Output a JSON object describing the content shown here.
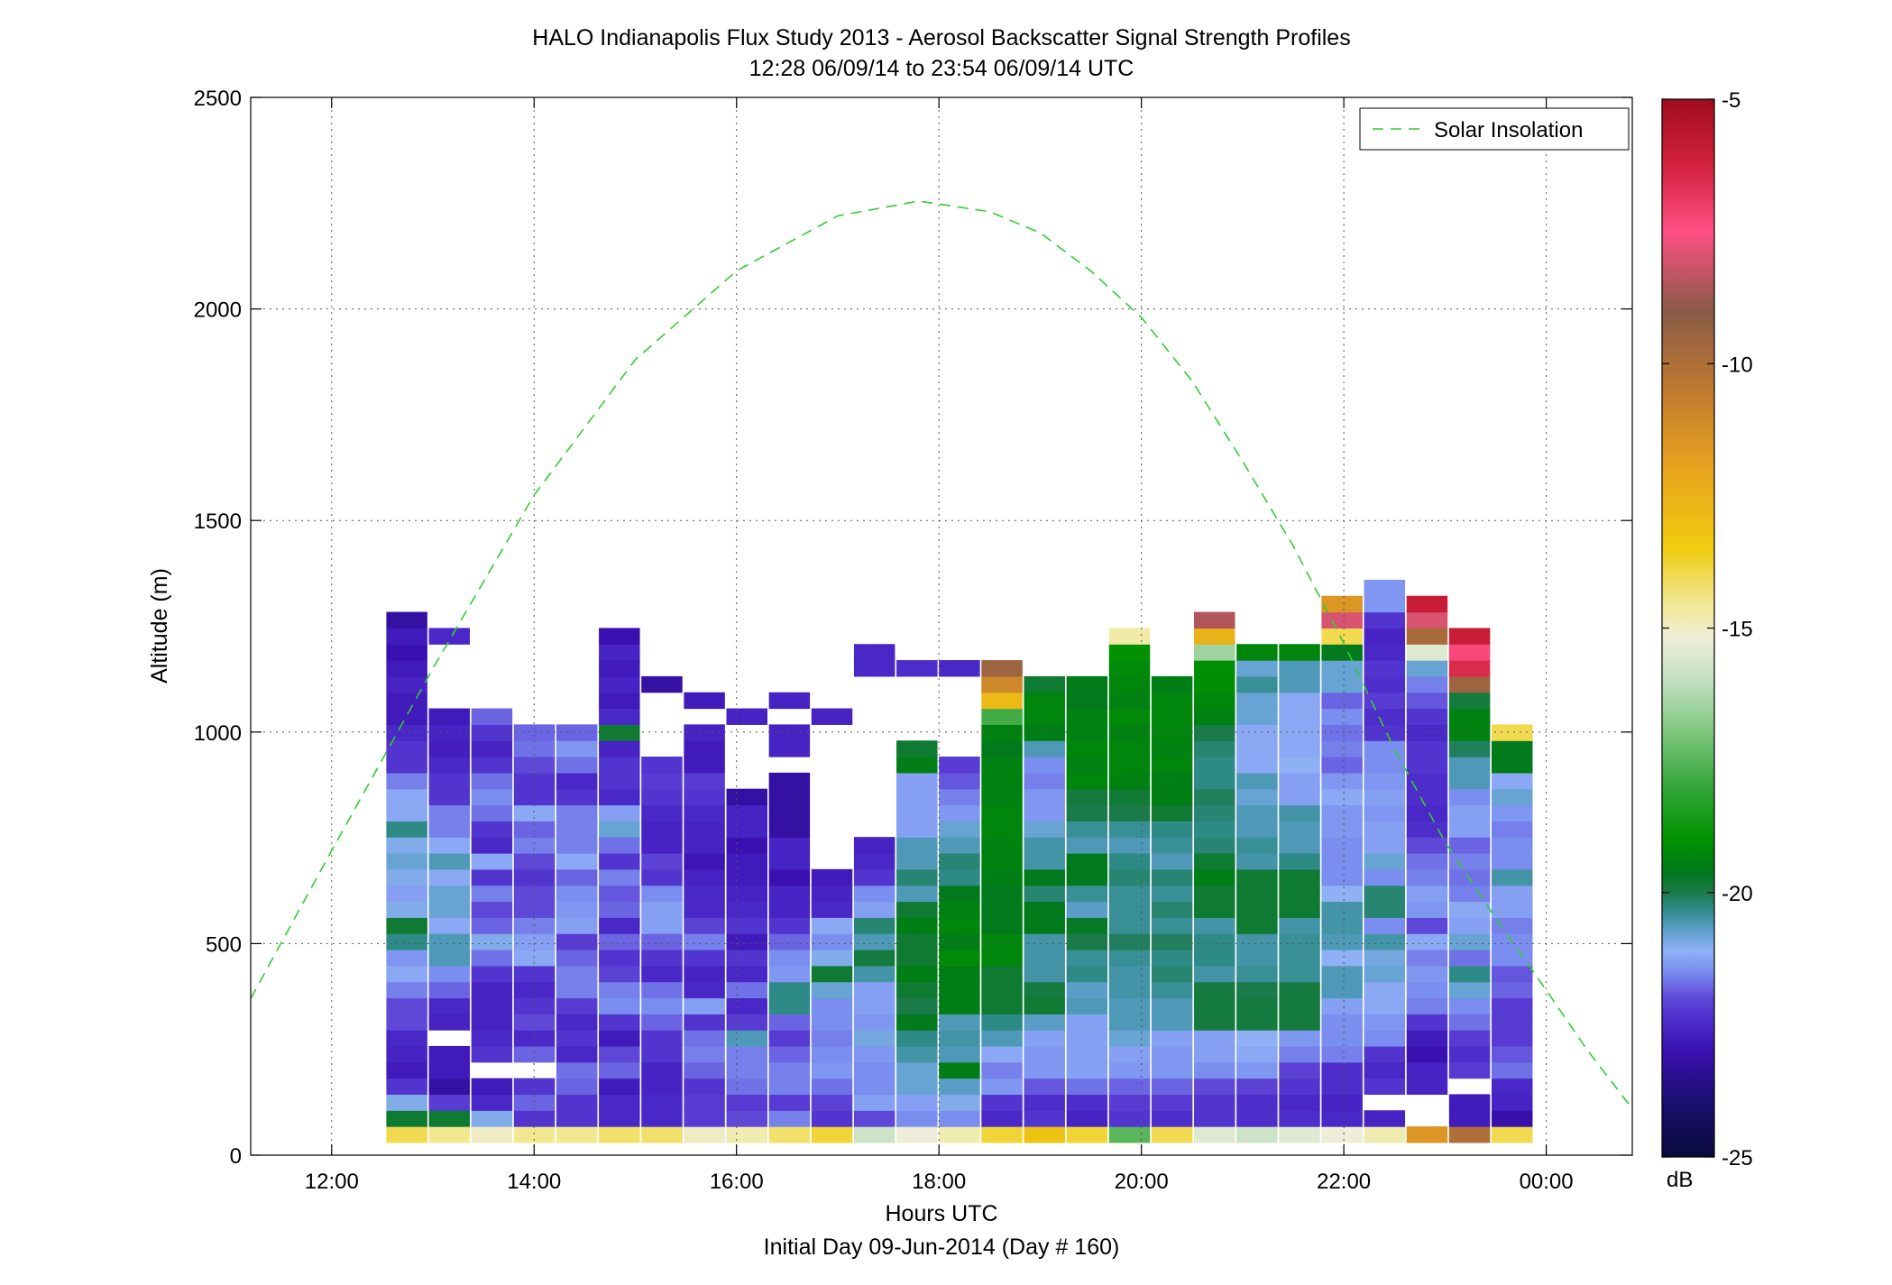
{
  "chart_data": {
    "type": "heatmap",
    "title": "HALO Indianapolis Flux Study 2013 - Aerosol Backscatter Signal Strength Profiles",
    "subtitle": "12:28 06/09/14 to 23:54 06/09/14  UTC",
    "xlabel": "Hours UTC",
    "xlabel2": "Initial Day 09-Jun-2014 (Day # 160)",
    "ylabel": "Altitude (m)",
    "xlim": [
      11.2,
      24.85
    ],
    "ylim": [
      0,
      2500
    ],
    "grid": true,
    "x_ticks": [
      12,
      14,
      16,
      18,
      20,
      22,
      24
    ],
    "x_tick_labels": [
      "12:00",
      "14:00",
      "16:00",
      "18:00",
      "20:00",
      "22:00",
      "00:00"
    ],
    "y_ticks": [
      0,
      500,
      1000,
      1500,
      2000,
      2500
    ],
    "y_tick_labels": [
      "0",
      "500",
      "1000",
      "1500",
      "2000",
      "2500"
    ],
    "colorbar": {
      "label": "dB",
      "range": [
        -25,
        -5
      ],
      "ticks": [
        -5,
        -10,
        -15,
        -20,
        -25
      ],
      "tick_labels": [
        "-5",
        "-10",
        "-15",
        "-20",
        "-25"
      ]
    },
    "legend": {
      "position": "top-right",
      "entries": [
        "Solar Insolation"
      ]
    },
    "solar_insolation": {
      "style": "dashed",
      "color": "#33cc33",
      "points": [
        [
          11.2,
          370
        ],
        [
          12,
          720
        ],
        [
          13,
          1150
        ],
        [
          14,
          1560
        ],
        [
          15,
          1880
        ],
        [
          16,
          2090
        ],
        [
          17,
          2220
        ],
        [
          17.8,
          2255
        ],
        [
          18.5,
          2230
        ],
        [
          19,
          2180
        ],
        [
          19.5,
          2090
        ],
        [
          20,
          1980
        ],
        [
          20.5,
          1830
        ],
        [
          21,
          1640
        ],
        [
          21.5,
          1440
        ],
        [
          22,
          1210
        ],
        [
          22.5,
          960
        ],
        [
          23,
          740
        ],
        [
          23.5,
          560
        ],
        [
          24,
          390
        ],
        [
          24.4,
          250
        ],
        [
          24.85,
          110
        ]
      ]
    },
    "profile_width_hours": 0.4,
    "range_gate_m": 38,
    "value_order": "bottom-to-top",
    "profiles": [
      {
        "t": 12.74,
        "base": 30,
        "values": [
          -14,
          -19.8,
          -21,
          -22.3,
          -22.8,
          -22.6,
          -22.5,
          -22,
          -22,
          -21.6,
          -21.2,
          -21.4,
          -20.3,
          -19.8,
          -21,
          -21.3,
          -21,
          -20.8,
          -21,
          -20.3,
          -21.2,
          -21.2,
          -21.6,
          -22.3,
          -22.3,
          -22.5,
          -22.8,
          -22.8,
          -22.6,
          -22.8,
          -23,
          -22.8,
          -23.2
        ]
      },
      {
        "t": 13.16,
        "base": 30,
        "values": [
          -14.5,
          -19.8,
          -22.2,
          -23.2,
          -22.8,
          -22.8,
          null,
          -22.6,
          -22.5,
          -21.8,
          -21.5,
          -20.6,
          -20.6,
          -21.2,
          -20.8,
          -20.8,
          -21.2,
          -20.6,
          -21.2,
          -21.6,
          -21.6,
          -22.3,
          -22.3,
          -22.5,
          -22.7,
          -22.6,
          -22.8,
          null,
          null,
          null,
          null,
          -22.5
        ]
      },
      {
        "t": 13.58,
        "base": 30,
        "values": [
          -15,
          -21,
          -22.5,
          -22.8,
          null,
          -22.3,
          -22.5,
          -22.6,
          -22.6,
          -22.6,
          -22.3,
          -21.7,
          -21,
          -21.8,
          -22,
          -21.6,
          -22.3,
          -21.2,
          -22.5,
          -22.3,
          -21.7,
          -21.5,
          -21.7,
          -22.3,
          -22.6,
          -22.3,
          -21.8
        ]
      },
      {
        "t": 14.0,
        "base": 30,
        "values": [
          -14.5,
          -22.3,
          -21.8,
          -22.3,
          null,
          -21.8,
          -22.5,
          -22,
          -22.3,
          -22.5,
          -22.3,
          -21.2,
          -21.3,
          -21.6,
          -22,
          -22,
          -22.3,
          -22,
          -21.6,
          -21.8,
          -21.2,
          -22.3,
          -22.3,
          -22,
          -21.7,
          -21.8
        ]
      },
      {
        "t": 14.42,
        "base": 30,
        "values": [
          -14.5,
          -22.3,
          -22.3,
          -21.8,
          -21.7,
          -22.5,
          -22.3,
          -22.5,
          -22.2,
          -21.6,
          -21.6,
          -21.8,
          -22.2,
          -21.3,
          -21.4,
          -21.5,
          -21.8,
          -21.2,
          -21.6,
          -21.6,
          -21.6,
          -22.3,
          -22.5,
          -21.7,
          -21.4,
          -21.8
        ]
      },
      {
        "t": 14.84,
        "base": 30,
        "values": [
          -14.2,
          -22.5,
          -22.5,
          -22.8,
          -21.8,
          -22,
          -22.8,
          -22.3,
          -21.5,
          -21.6,
          -22.1,
          -22.3,
          -21.8,
          -22.5,
          -21.8,
          -21.9,
          -21.6,
          -22.3,
          -21.7,
          -20.8,
          -21.3,
          -22.5,
          -22.3,
          -22.3,
          -22.6,
          -19.8,
          -22.5,
          -22.8,
          -22.6,
          -22.8,
          -22.6,
          -23
        ]
      },
      {
        "t": 15.26,
        "base": 30,
        "values": [
          -14.2,
          -22.5,
          -22.5,
          -22.6,
          -22.6,
          -22.3,
          -22.3,
          -21.8,
          -21.5,
          -21.7,
          -22.5,
          -22.3,
          -21.8,
          -21.3,
          -21.3,
          -21.5,
          -22.3,
          -22.1,
          -22.6,
          -22.6,
          -22.5,
          -22.3,
          -22.2,
          -22.3,
          null,
          null,
          null,
          null,
          -23.2
        ]
      },
      {
        "t": 15.68,
        "base": 30,
        "values": [
          -15,
          -22.2,
          -22.2,
          -22.3,
          -21.8,
          -21.6,
          -21.7,
          -22.3,
          -21.3,
          -22.5,
          -22.6,
          -22.3,
          -21.6,
          -22.1,
          -22.5,
          -22.5,
          -22.6,
          -22.9,
          -22.6,
          -22.6,
          -22.5,
          -22.3,
          -22.2,
          -22.8,
          -22.8,
          -22.6,
          null,
          -22.8
        ]
      },
      {
        "t": 16.1,
        "base": 30,
        "values": [
          -14.8,
          -22,
          -22.2,
          -21.7,
          -21.6,
          -21.6,
          -20.6,
          -22.2,
          -22.5,
          -21.7,
          -22.5,
          -22.3,
          -22.8,
          -22.3,
          -22.5,
          -22.6,
          -22.8,
          -22.8,
          -23,
          -22.6,
          -22.6,
          -23.2,
          null,
          null,
          null,
          null,
          -22.6
        ]
      },
      {
        "t": 16.52,
        "base": 30,
        "values": [
          -14.2,
          -21.6,
          -22.2,
          -21.6,
          -21.6,
          -21.8,
          -22.2,
          -21.8,
          -20.3,
          -20.3,
          -21.4,
          -21.5,
          -21.8,
          -22.3,
          -22.6,
          -22.6,
          -23,
          -22.6,
          -22.6,
          -23.2,
          -23.2,
          -23.2,
          -23.2,
          null,
          -22.6,
          -22.6,
          null,
          -22.6
        ]
      },
      {
        "t": 16.94,
        "base": 30,
        "values": [
          -13.8,
          -22.3,
          -22.1,
          -21.7,
          -21.4,
          -21.5,
          -21.6,
          -21.5,
          -21.5,
          -20.8,
          -19.8,
          -21,
          -21.5,
          -21.2,
          -22.5,
          -22.6,
          -22.8,
          null,
          null,
          null,
          null,
          null,
          null,
          null,
          null,
          null,
          -22.6
        ]
      },
      {
        "t": 17.36,
        "base": 30,
        "values": [
          -15.8,
          -22,
          -21.3,
          -21.5,
          -21.5,
          -21.4,
          -20.9,
          -21.4,
          -21.3,
          -21.3,
          -20.5,
          -19.9,
          -20.6,
          -20.2,
          -21.3,
          -21.5,
          -22.3,
          -22.5,
          -22.6,
          null,
          null,
          null,
          null,
          null,
          null,
          null,
          null,
          null,
          null,
          -22.5,
          -22.5
        ]
      },
      {
        "t": 17.78,
        "base": 30,
        "values": [
          -15.2,
          -21.5,
          -21.3,
          -20.8,
          -20.8,
          -20.5,
          -20.3,
          -19.6,
          -20,
          -19.8,
          -19.5,
          -19.8,
          -19.8,
          -19.5,
          -19.8,
          -20.6,
          -20.2,
          -20.6,
          -20.6,
          -21.3,
          -21.3,
          -21.3,
          -21.3,
          -19.5,
          -19.8,
          null,
          null,
          null,
          null,
          -22.4
        ]
      },
      {
        "t": 18.2,
        "base": 30,
        "values": [
          -14.8,
          -21.5,
          -21,
          -20.7,
          -19.5,
          -20.6,
          -20.5,
          -20.6,
          -19.5,
          -19.5,
          -19.5,
          -19.2,
          -19.5,
          -19.3,
          -19.4,
          -19.6,
          -20.3,
          -20.2,
          -20.6,
          -20.8,
          -21.4,
          -21.6,
          -21.9,
          -22.2,
          null,
          null,
          null,
          null,
          null,
          -22.5
        ]
      },
      {
        "t": 18.62,
        "base": 30,
        "values": [
          -13.8,
          -22.5,
          -22.3,
          -21.4,
          -21.6,
          -21.2,
          -20.6,
          -20.3,
          -19.8,
          -19.8,
          -19.8,
          -19.3,
          -19.3,
          -19.6,
          -19.6,
          -19.6,
          -19.5,
          -19.4,
          -19.4,
          -19.3,
          -19.3,
          -19.4,
          -19.4,
          -19.4,
          -19.6,
          -19.4,
          -17.8,
          -12.8,
          -11,
          -9.5
        ]
      },
      {
        "t": 19.04,
        "base": 30,
        "values": [
          -13.2,
          -22.3,
          -22.4,
          -21.9,
          -21.4,
          -21.4,
          -21.3,
          -20.7,
          -19.8,
          -19.9,
          -20.5,
          -20.5,
          -20.5,
          -19.6,
          -19.6,
          -20.2,
          -19.6,
          -20.5,
          -20.5,
          -20.8,
          -21.4,
          -21.4,
          -21.6,
          -21.5,
          -20.6,
          -19.5,
          -19.3,
          -19.3,
          -19.8
        ]
      },
      {
        "t": 19.46,
        "base": 30,
        "values": [
          -13.8,
          -22.6,
          -22.4,
          -21.7,
          -21.3,
          -21.3,
          -21.3,
          -21.3,
          -20.6,
          -20.7,
          -20.3,
          -20.4,
          -20,
          -19.7,
          -20.7,
          -20.4,
          -19.6,
          -19.6,
          -20.6,
          -20.4,
          -20,
          -19.9,
          -19.3,
          -19.4,
          -19.3,
          -19.4,
          -19.4,
          -19.6,
          -19.6
        ]
      },
      {
        "t": 19.88,
        "base": 30,
        "values": [
          -17.5,
          -22.3,
          -22.2,
          -21.8,
          -21.4,
          -21.3,
          -20.8,
          -20.6,
          -20.6,
          -20.5,
          -20.5,
          -20.4,
          -20.1,
          -20.4,
          -20.4,
          -20.4,
          -20.2,
          -20.3,
          -20.6,
          -20.4,
          -20,
          -19.8,
          -19.4,
          -19.3,
          -19.3,
          -19.4,
          -19.2,
          -19.4,
          -19.3,
          -19.2,
          -19,
          -14.7
        ]
      },
      {
        "t": 20.3,
        "base": 30,
        "values": [
          -14,
          -22.4,
          -22.2,
          -21.8,
          -21.4,
          -21.4,
          -21.3,
          -20.6,
          -20.6,
          -20.4,
          -20.2,
          -20.3,
          -20.1,
          -20.4,
          -20.2,
          -20.4,
          -20.2,
          -20.6,
          -20.4,
          -20.3,
          -19.8,
          -19.5,
          -19.5,
          -19.3,
          -19.4,
          -19.3,
          -19.3,
          -19.3,
          -19.5
        ]
      },
      {
        "t": 20.72,
        "base": 30,
        "values": [
          -15.5,
          -22.3,
          -22.3,
          -22,
          -21.5,
          -21.3,
          -21.3,
          -19.9,
          -19.9,
          -19.9,
          -20.5,
          -20.3,
          -20.3,
          -20.5,
          -19.8,
          -19.8,
          -19.5,
          -19.8,
          -20.2,
          -20.3,
          -20.2,
          -20.1,
          -20.3,
          -20.3,
          -20.2,
          -20,
          -19.4,
          -19.3,
          -19.1,
          -19.1,
          -16.5,
          -12.5,
          -8.5
        ]
      },
      {
        "t": 21.14,
        "base": 30,
        "values": [
          -15.8,
          -22.4,
          -22.4,
          -22.1,
          -21.4,
          -21.2,
          -21.1,
          -19.9,
          -19.9,
          -20,
          -20.4,
          -20.5,
          -20.5,
          -19.8,
          -19.8,
          -19.8,
          -19.8,
          -20.5,
          -20.4,
          -20.6,
          -20.6,
          -20.8,
          -20.6,
          -21.2,
          -21.2,
          -21.2,
          -20.8,
          -20.8,
          -20.4,
          -20.8,
          -19.3
        ]
      },
      {
        "t": 21.56,
        "base": 30,
        "values": [
          -15.5,
          -22.4,
          -22.5,
          -22.3,
          -22.1,
          -21.6,
          -21.4,
          -19.9,
          -19.9,
          -19.9,
          -20.4,
          -20.4,
          -20.4,
          -20.5,
          -19.8,
          -19.8,
          -19.8,
          -20.3,
          -20.6,
          -20.6,
          -20.5,
          -21.3,
          -21.3,
          -21.1,
          -21.2,
          -21.2,
          -21.2,
          -21.2,
          -20.6,
          -20.6,
          -19.3
        ]
      },
      {
        "t": 21.98,
        "base": 30,
        "values": [
          -15.2,
          -22.5,
          -22.6,
          -22.4,
          -22.4,
          -21.6,
          -21.5,
          -21.5,
          -21.3,
          -20.6,
          -20.6,
          -21.1,
          -20.6,
          -20.5,
          -20.5,
          -21.1,
          -21.5,
          -21.5,
          -21.5,
          -21.4,
          -21.4,
          -21.2,
          -21.4,
          -21.8,
          -21.6,
          -21.7,
          -21.5,
          -21.8,
          -20.8,
          -20.8,
          -19.6,
          -14,
          -8,
          -11.5
        ]
      },
      {
        "t": 22.4,
        "base": 30,
        "values": [
          -14.8,
          -22.6,
          null,
          -22.3,
          -22.5,
          -22.3,
          -21.5,
          -21.4,
          -21.2,
          -21.2,
          -20.8,
          -20.9,
          -20.5,
          -21.5,
          -20.2,
          -20.2,
          -21.5,
          -20.8,
          -21.3,
          -21.3,
          -21.4,
          -21.3,
          -21.4,
          -21.5,
          -21.5,
          -22.3,
          -22.4,
          -22.2,
          -22.4,
          -22.3,
          -22.5,
          -22.6,
          -22.3,
          -21.4,
          -21.4
        ]
      },
      {
        "t": 22.82,
        "base": 30,
        "values": [
          -11.5,
          null,
          null,
          -22.6,
          -22.6,
          -23,
          -22.8,
          -22.3,
          -21.6,
          -21.5,
          -21.4,
          -21.6,
          -21.2,
          -22,
          -21.4,
          -21.3,
          -21.6,
          -21.7,
          -22,
          -22.4,
          -22.5,
          -22.4,
          -22.4,
          -22.3,
          -22.3,
          -22.5,
          -22.3,
          -21.9,
          -21.6,
          -20.8,
          -15.5,
          -9.8,
          -8,
          -6
        ]
      },
      {
        "t": 23.24,
        "base": 30,
        "values": [
          -10,
          -22.8,
          -22.8,
          null,
          -22.2,
          -22.4,
          -22.2,
          -21.7,
          -21.5,
          -20.8,
          -20.3,
          -21.7,
          -20.8,
          -21.3,
          -21.2,
          -21.6,
          -21.7,
          -21.6,
          -21.8,
          -21.3,
          -21.3,
          -21.5,
          -20.6,
          -20.6,
          -20.1,
          -19.4,
          -19.4,
          -19.9,
          -9.5,
          -6.5,
          -7.3,
          -6
        ]
      },
      {
        "t": 23.66,
        "base": 30,
        "values": [
          -14,
          -23.1,
          -22.6,
          -22.5,
          -21.7,
          -21.9,
          -22.2,
          -22.2,
          -22.2,
          -21.8,
          -21.9,
          -21.5,
          -21.5,
          -21.6,
          -21.3,
          -21.3,
          -20.5,
          -21.5,
          -21.5,
          -21.6,
          -21.4,
          -20.8,
          -21.2,
          -19.6,
          -19.6,
          -14
        ]
      }
    ]
  }
}
